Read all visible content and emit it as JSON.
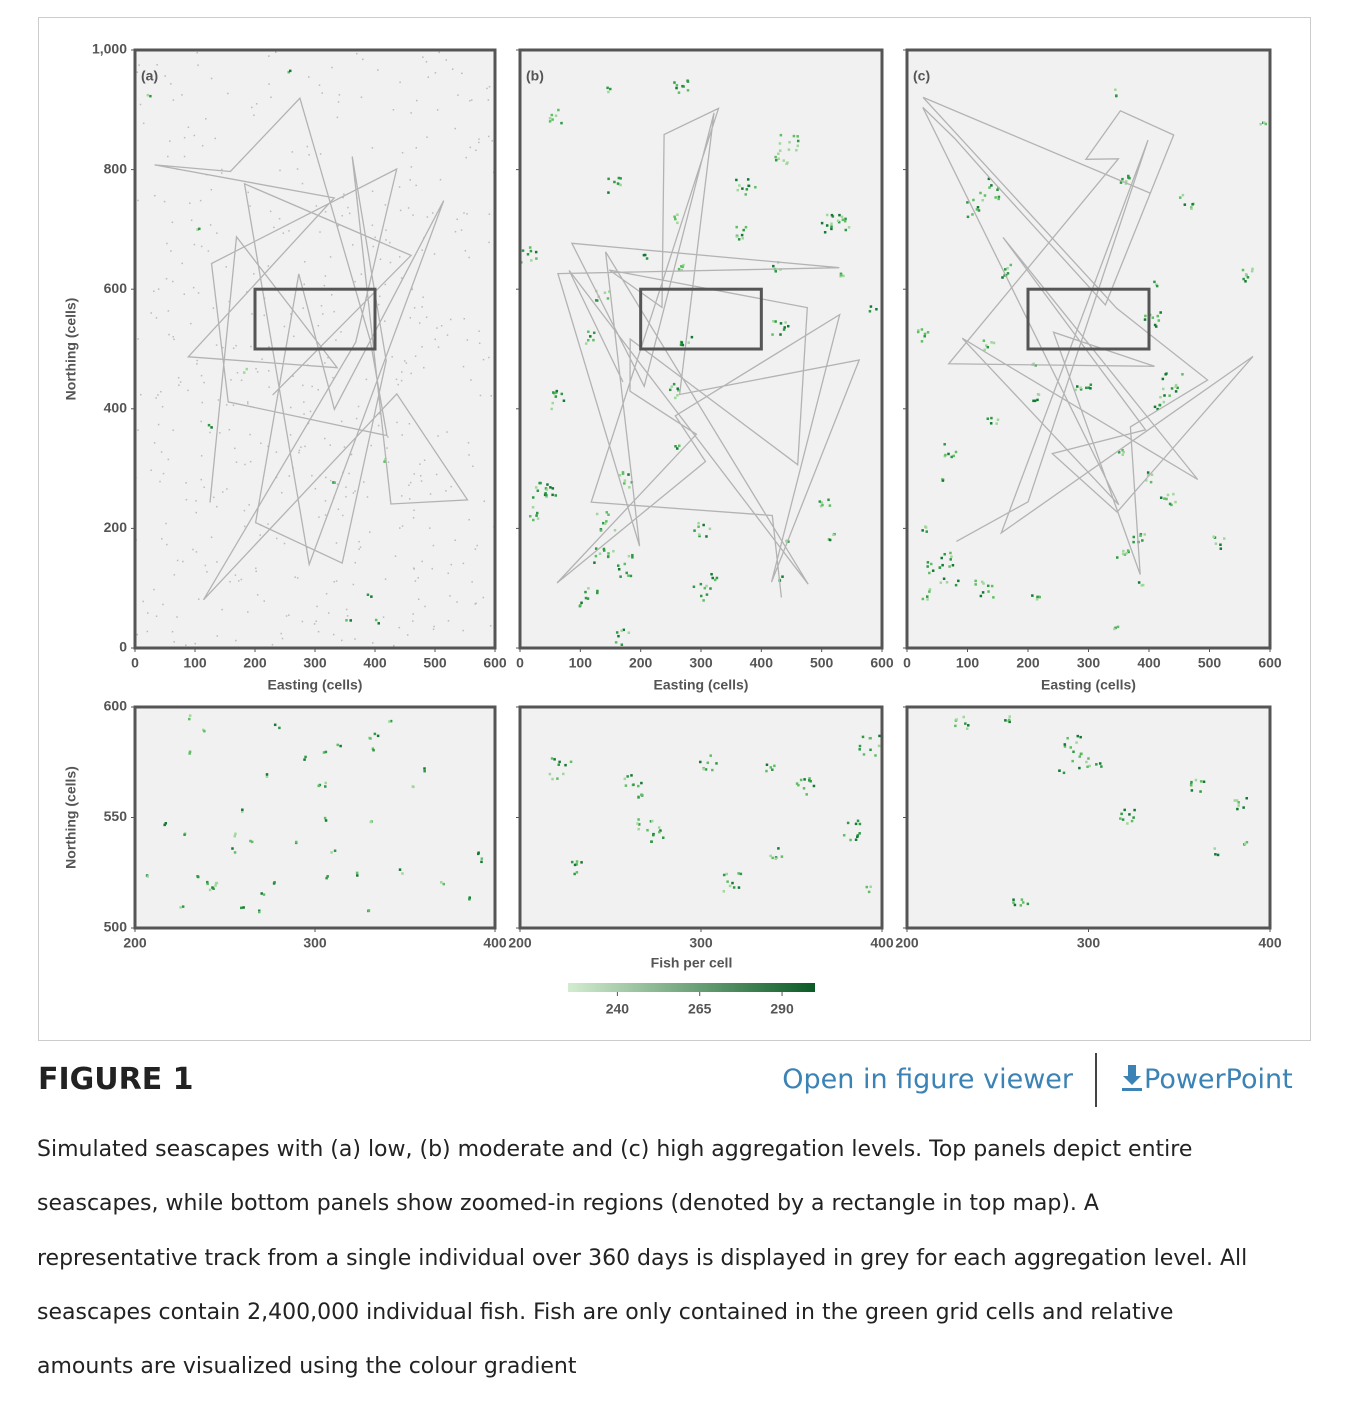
{
  "chart_data": [
    {
      "type": "map",
      "label": "(a)",
      "x_label": "Easting (cells)",
      "y_label": "Northing (cells)",
      "xlim": [
        0,
        600
      ],
      "ylim": [
        0,
        1000
      ],
      "xticks": [
        0,
        100,
        200,
        300,
        400,
        500,
        600
      ],
      "yticks": [
        0,
        200,
        400,
        600,
        800,
        {
          "value": 1000,
          "label": "1,000"
        }
      ],
      "ytick_labels": true,
      "zoom_box": {
        "x": [
          200,
          400
        ],
        "y": [
          500,
          600
        ]
      }
    },
    {
      "type": "map",
      "label": "(b)",
      "x_label": "Easting (cells)",
      "xlim": [
        0,
        600
      ],
      "ylim": [
        0,
        1000
      ],
      "xticks": [
        0,
        100,
        200,
        300,
        400,
        500,
        600
      ],
      "yticks": [
        0,
        200,
        400,
        600,
        800,
        1000
      ],
      "ytick_labels": false,
      "zoom_box": {
        "x": [
          200,
          400
        ],
        "y": [
          500,
          600
        ]
      }
    },
    {
      "type": "map",
      "label": "(c)",
      "x_label": "Easting (cells)",
      "xlim": [
        0,
        600
      ],
      "ylim": [
        0,
        1000
      ],
      "xticks": [
        0,
        100,
        200,
        300,
        400,
        500,
        600
      ],
      "yticks": [
        0,
        200,
        400,
        600,
        800,
        1000
      ],
      "ytick_labels": false,
      "zoom_box": {
        "x": [
          200,
          400
        ],
        "y": [
          500,
          600
        ]
      }
    },
    {
      "type": "map",
      "y_label": "Northing (cells)",
      "xlim": [
        200,
        400
      ],
      "ylim": [
        500,
        600
      ],
      "xticks": [
        200,
        300,
        400
      ],
      "yticks": [
        500,
        550,
        600
      ],
      "ytick_labels": true
    },
    {
      "type": "map",
      "xlim": [
        200,
        400
      ],
      "ylim": [
        500,
        600
      ],
      "xticks": [
        200,
        300,
        400
      ],
      "yticks": [
        500,
        550,
        600
      ],
      "ytick_labels": false
    },
    {
      "type": "map",
      "xlim": [
        200,
        400
      ],
      "ylim": [
        500,
        600
      ],
      "xticks": [
        200,
        300,
        400
      ],
      "yticks": [
        500,
        550,
        600
      ],
      "ytick_labels": false
    }
  ],
  "colorbar": {
    "title": "Fish per cell",
    "lim": [
      225,
      300
    ],
    "ticks": [
      240,
      265,
      290
    ],
    "colors": [
      "#d3ecd0",
      "#0b5a26"
    ]
  },
  "header": {
    "title": "FIGURE 1",
    "viewer_link": "Open in figure viewer",
    "download_link": "PowerPoint"
  },
  "caption": {
    "lines": [
      "Simulated seascapes with (a) low, (b) moderate and (c) high aggregation levels. Top panels depict entire",
      "seascapes, while bottom panels show zoomed-in regions (denoted by a rectangle in top map). A",
      "representative track from a single individual over 360 days is displayed in grey for each aggregation level. All",
      "seascapes contain 2,400,000 individual fish. Fish are only contained in the green grid cells and relative",
      "amounts are visualized using the colour gradient"
    ]
  }
}
